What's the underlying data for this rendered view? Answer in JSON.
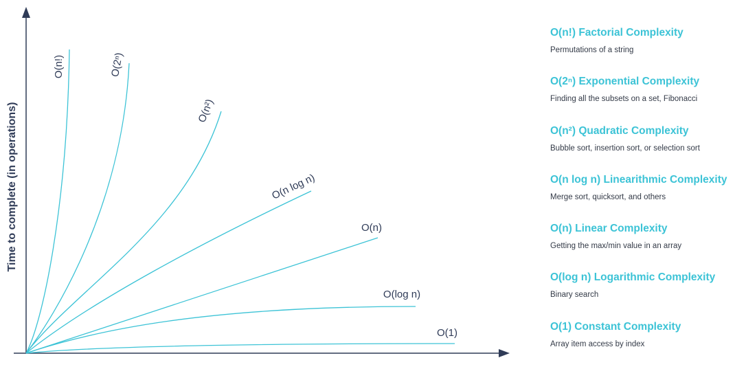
{
  "chart_data": {
    "type": "line",
    "ylabel": "Time to complete (in operations)",
    "xlabel": "",
    "series": [
      {
        "name": "O(n!)",
        "curve_label": "O(n!)"
      },
      {
        "name": "O(2ⁿ)",
        "curve_label": "O(2ⁿ)"
      },
      {
        "name": "O(n²)",
        "curve_label": "O(n²)"
      },
      {
        "name": "O(n log n)",
        "curve_label": "O(n log n)"
      },
      {
        "name": "O(n)",
        "curve_label": "O(n)"
      },
      {
        "name": "O(log n)",
        "curve_label": "O(log n)"
      },
      {
        "name": "O(1)",
        "curve_label": "O(1)"
      }
    ]
  },
  "legend": [
    {
      "title": "O(n!) Factorial Complexity",
      "description": "Permutations of a string"
    },
    {
      "title": "O(2ⁿ) Exponential Complexity",
      "description": "Finding all the subsets on a set, Fibonacci"
    },
    {
      "title": "O(n²) Quadratic Complexity",
      "description": "Bubble sort, insertion sort, or selection sort"
    },
    {
      "title": "O(n log n) Linearithmic Complexity",
      "description": "Merge sort, quicksort, and others"
    },
    {
      "title": "O(n) Linear Complexity",
      "description": "Getting the max/min value in an array"
    },
    {
      "title": "O(log n) Logarithmic Complexity",
      "description": "Binary search"
    },
    {
      "title": "O(1) Constant Complexity",
      "description": "Array item access by index"
    }
  ],
  "colors": {
    "curve": "#3cc3d6",
    "axis": "#2f3b57",
    "legend_title": "#3cc3d6",
    "text": "#2f3b57"
  }
}
